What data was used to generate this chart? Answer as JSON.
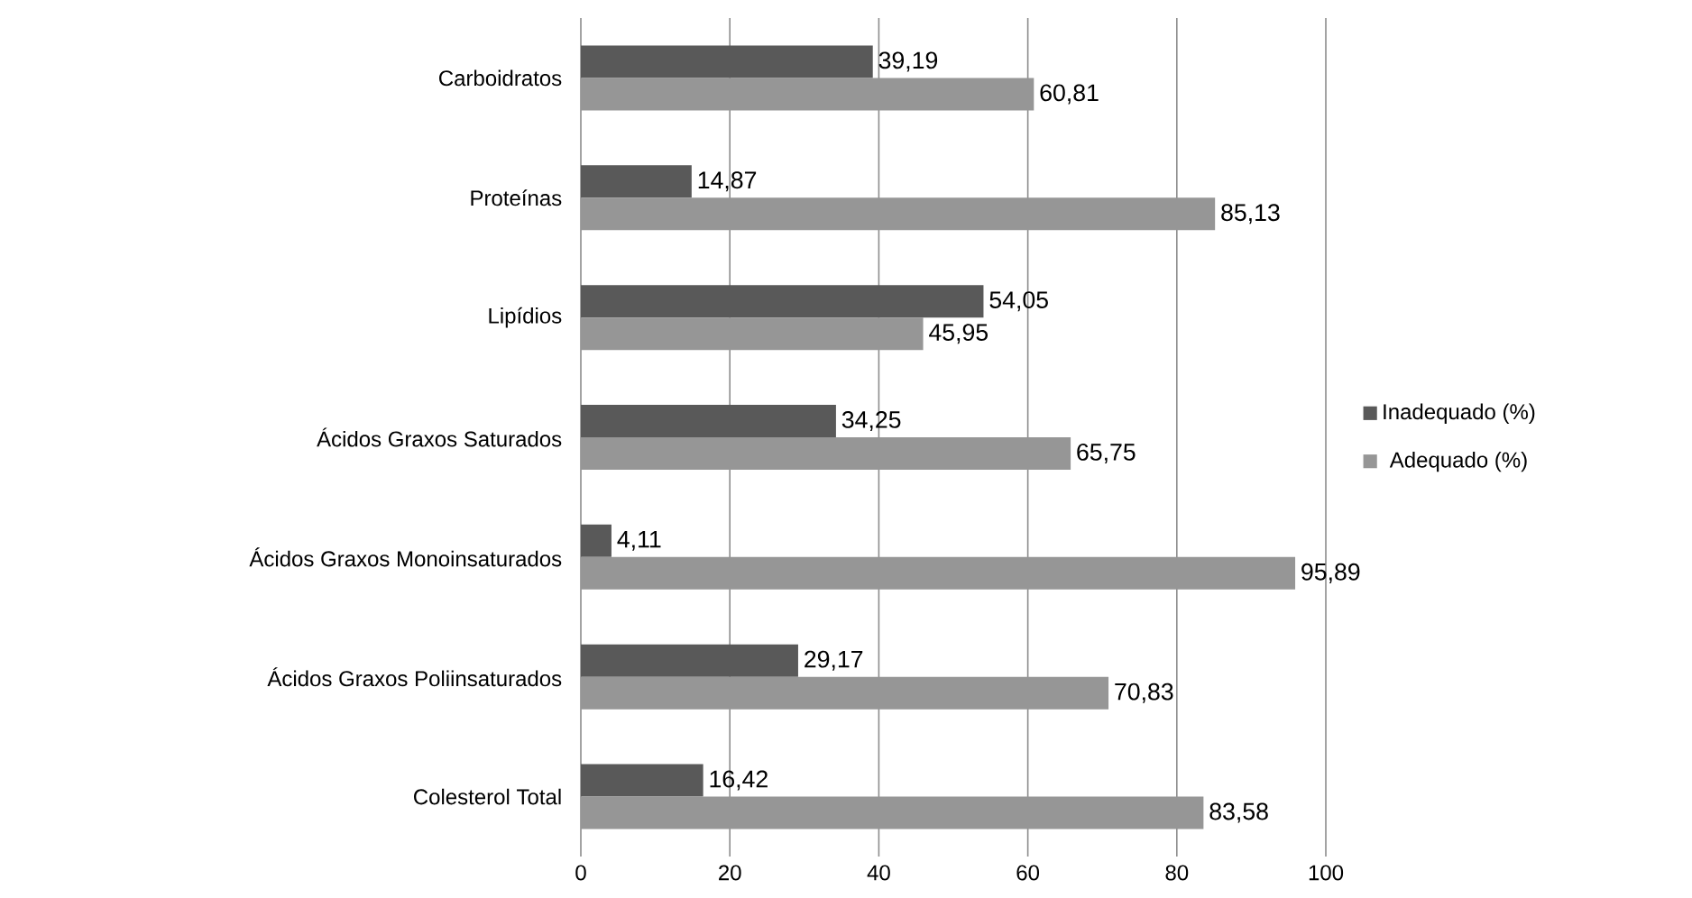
{
  "chart_data": {
    "type": "bar",
    "orientation": "horizontal",
    "categories": [
      "Carboidratos",
      "Proteínas",
      "Lipídios",
      "Ácidos Graxos Saturados",
      "Ácidos Graxos Monoinsaturados",
      "Ácidos Graxos Poliinsaturados",
      "Colesterol Total"
    ],
    "series": [
      {
        "name": "Inadequado (%)",
        "color": "#595959",
        "values": [
          39.19,
          14.87,
          54.05,
          34.25,
          4.11,
          29.17,
          16.42
        ],
        "value_labels": [
          "39,19",
          "14,87",
          "54,05",
          "34,25",
          "4,11",
          "29,17",
          "16,42"
        ]
      },
      {
        "name": "Adequado (%)",
        "color": "#969696",
        "values": [
          60.81,
          85.13,
          45.95,
          65.75,
          95.89,
          70.83,
          83.58
        ],
        "value_labels": [
          "60,81",
          "85,13",
          "45,95",
          "65,75",
          "95,89",
          "70,83",
          "83,58"
        ]
      }
    ],
    "xlim": [
      0,
      100
    ],
    "xticks": [
      0,
      20,
      40,
      60,
      80,
      100
    ],
    "grid": "x",
    "legend": "right"
  }
}
